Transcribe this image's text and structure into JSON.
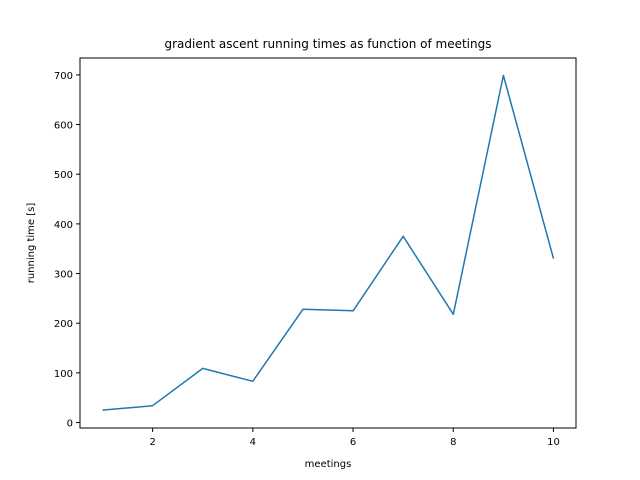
{
  "chart_data": {
    "type": "line",
    "title": "gradient ascent running times as function of meetings",
    "xlabel": "meetings",
    "ylabel": "running time [s]",
    "xlim": [
      0.55,
      10.45
    ],
    "ylim": [
      -11,
      734
    ],
    "xticks": [
      2,
      4,
      6,
      8,
      10
    ],
    "yticks": [
      0,
      100,
      200,
      300,
      400,
      500,
      600,
      700
    ],
    "grid": false,
    "series": [
      {
        "color": "#1f77b4",
        "x": [
          1,
          2,
          3,
          4,
          5,
          6,
          7,
          8,
          9,
          10
        ],
        "y": [
          25,
          34,
          109,
          83,
          228,
          225,
          375,
          218,
          699,
          330
        ]
      }
    ]
  }
}
